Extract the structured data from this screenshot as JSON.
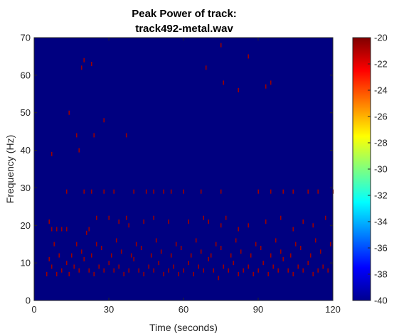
{
  "chart_data": {
    "type": "heatmap",
    "title_line1": "Peak Power of track:",
    "title_line2": "track492-metal.wav",
    "xlabel": "Time (seconds)",
    "ylabel": "Frequency (Hz)",
    "xlim": [
      0,
      120
    ],
    "ylim": [
      0,
      70
    ],
    "xticks": [
      0,
      30,
      60,
      90,
      120
    ],
    "yticks": [
      0,
      10,
      20,
      30,
      40,
      50,
      60,
      70
    ],
    "clim": [
      -40,
      -20
    ],
    "colorbar_ticks": [
      -20,
      -22,
      -24,
      -26,
      -28,
      -30,
      -32,
      -34,
      -36,
      -38,
      -40
    ],
    "colormap": "jet",
    "background_value": -40,
    "peak_value": -20,
    "peaks": [
      [
        5,
        7
      ],
      [
        7,
        9
      ],
      [
        9,
        7
      ],
      [
        11,
        8
      ],
      [
        13,
        10
      ],
      [
        14,
        7
      ],
      [
        16,
        9
      ],
      [
        18,
        8
      ],
      [
        20,
        11
      ],
      [
        22,
        8
      ],
      [
        24,
        7
      ],
      [
        26,
        9
      ],
      [
        28,
        8
      ],
      [
        30,
        10
      ],
      [
        32,
        8
      ],
      [
        34,
        9
      ],
      [
        36,
        7
      ],
      [
        38,
        8
      ],
      [
        40,
        11
      ],
      [
        42,
        8
      ],
      [
        44,
        7
      ],
      [
        46,
        9
      ],
      [
        48,
        8
      ],
      [
        50,
        10
      ],
      [
        52,
        7
      ],
      [
        54,
        8
      ],
      [
        56,
        9
      ],
      [
        58,
        7
      ],
      [
        60,
        8
      ],
      [
        62,
        10
      ],
      [
        64,
        7
      ],
      [
        66,
        9
      ],
      [
        68,
        8
      ],
      [
        70,
        11
      ],
      [
        72,
        8
      ],
      [
        74,
        6
      ],
      [
        76,
        9
      ],
      [
        78,
        8
      ],
      [
        80,
        10
      ],
      [
        82,
        7
      ],
      [
        84,
        8
      ],
      [
        86,
        9
      ],
      [
        88,
        7
      ],
      [
        90,
        8
      ],
      [
        92,
        10
      ],
      [
        94,
        7
      ],
      [
        96,
        9
      ],
      [
        98,
        8
      ],
      [
        100,
        11
      ],
      [
        102,
        8
      ],
      [
        104,
        7
      ],
      [
        106,
        9
      ],
      [
        108,
        8
      ],
      [
        110,
        10
      ],
      [
        112,
        7
      ],
      [
        114,
        8
      ],
      [
        116,
        9
      ],
      [
        118,
        8
      ],
      [
        6,
        11
      ],
      [
        10,
        12
      ],
      [
        15,
        12
      ],
      [
        19,
        13
      ],
      [
        23,
        12
      ],
      [
        27,
        14
      ],
      [
        31,
        12
      ],
      [
        35,
        13
      ],
      [
        39,
        12
      ],
      [
        43,
        14
      ],
      [
        47,
        12
      ],
      [
        51,
        13
      ],
      [
        55,
        12
      ],
      [
        59,
        14
      ],
      [
        63,
        12
      ],
      [
        67,
        13
      ],
      [
        71,
        12
      ],
      [
        75,
        14
      ],
      [
        79,
        12
      ],
      [
        83,
        13
      ],
      [
        87,
        12
      ],
      [
        91,
        14
      ],
      [
        95,
        12
      ],
      [
        99,
        13
      ],
      [
        103,
        12
      ],
      [
        107,
        14
      ],
      [
        111,
        12
      ],
      [
        115,
        13
      ],
      [
        8,
        15
      ],
      [
        17,
        15
      ],
      [
        25,
        15
      ],
      [
        33,
        16
      ],
      [
        41,
        15
      ],
      [
        49,
        16
      ],
      [
        57,
        15
      ],
      [
        65,
        16
      ],
      [
        73,
        15
      ],
      [
        81,
        16
      ],
      [
        89,
        15
      ],
      [
        97,
        16
      ],
      [
        105,
        15
      ],
      [
        113,
        16
      ],
      [
        119,
        15
      ],
      [
        6,
        21
      ],
      [
        7,
        19
      ],
      [
        9,
        19
      ],
      [
        11,
        19
      ],
      [
        13,
        19
      ],
      [
        21,
        18
      ],
      [
        22,
        19
      ],
      [
        25,
        22
      ],
      [
        30,
        22
      ],
      [
        34,
        21
      ],
      [
        37,
        22
      ],
      [
        38,
        20
      ],
      [
        44,
        21
      ],
      [
        48,
        22
      ],
      [
        54,
        21
      ],
      [
        62,
        21
      ],
      [
        68,
        22
      ],
      [
        70,
        21
      ],
      [
        75,
        20
      ],
      [
        77,
        22
      ],
      [
        82,
        19
      ],
      [
        86,
        20
      ],
      [
        93,
        21
      ],
      [
        99,
        22
      ],
      [
        104,
        19
      ],
      [
        108,
        21
      ],
      [
        112,
        20
      ],
      [
        117,
        22
      ],
      [
        13,
        29
      ],
      [
        20,
        29
      ],
      [
        23,
        29
      ],
      [
        28,
        29
      ],
      [
        32,
        29
      ],
      [
        40,
        29
      ],
      [
        45,
        29
      ],
      [
        48,
        29
      ],
      [
        52,
        29
      ],
      [
        55,
        29
      ],
      [
        60,
        29
      ],
      [
        67,
        29
      ],
      [
        75,
        29
      ],
      [
        90,
        29
      ],
      [
        95,
        29
      ],
      [
        100,
        29
      ],
      [
        104,
        29
      ],
      [
        110,
        29
      ],
      [
        114,
        29
      ],
      [
        120,
        29
      ],
      [
        7,
        39
      ],
      [
        18,
        40
      ],
      [
        17,
        44
      ],
      [
        24,
        44
      ],
      [
        37,
        44
      ],
      [
        14,
        50
      ],
      [
        28,
        48
      ],
      [
        20,
        64
      ],
      [
        23,
        63
      ],
      [
        19,
        62
      ],
      [
        69,
        62
      ],
      [
        76,
        58
      ],
      [
        82,
        56
      ],
      [
        93,
        57
      ],
      [
        95,
        58
      ],
      [
        86,
        65
      ],
      [
        75,
        68
      ]
    ]
  }
}
